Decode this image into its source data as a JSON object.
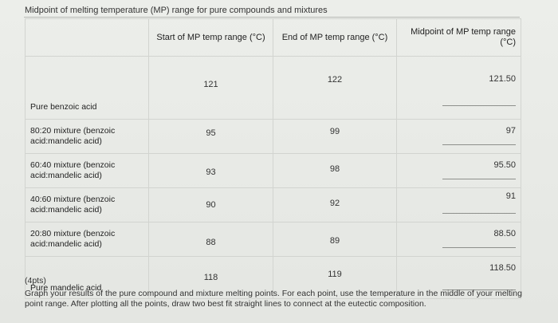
{
  "title": "Midpoint of melting temperature (MP) range for pure compounds and mixtures",
  "headers": {
    "label": "",
    "start": "Start of MP temp range (°C)",
    "end": "End of MP temp range (°C)",
    "mid": "Midpoint of MP temp range (°C)"
  },
  "rows": [
    {
      "label": "Pure benzoic acid",
      "start": "121",
      "end": "122",
      "mid": "121.50"
    },
    {
      "label": "80:20 mixture (benzoic acid:mandelic acid)",
      "start": "95",
      "end": "99",
      "mid": "97"
    },
    {
      "label": "60:40 mixture (benzoic acid:mandelic acid)",
      "start": "93",
      "end": "98",
      "mid": "95.50"
    },
    {
      "label": "40:60 mixture (benzoic acid:mandelic acid)",
      "start": "90",
      "end": "92",
      "mid": "91"
    },
    {
      "label": "20:80 mixture (benzoic acid:mandelic acid)",
      "start": "88",
      "end": "89",
      "mid": "88.50"
    },
    {
      "label": "Pure mandelic acid",
      "start": "118",
      "end": "119",
      "mid": "118.50"
    }
  ],
  "note": {
    "points": "(4pts)",
    "text": "Graph your results of the pure compound and mixture melting points. For each point, use the temperature in the middle of your melting point range. After plotting all the points, draw two best fit straight lines to connect at the eutectic composition."
  }
}
